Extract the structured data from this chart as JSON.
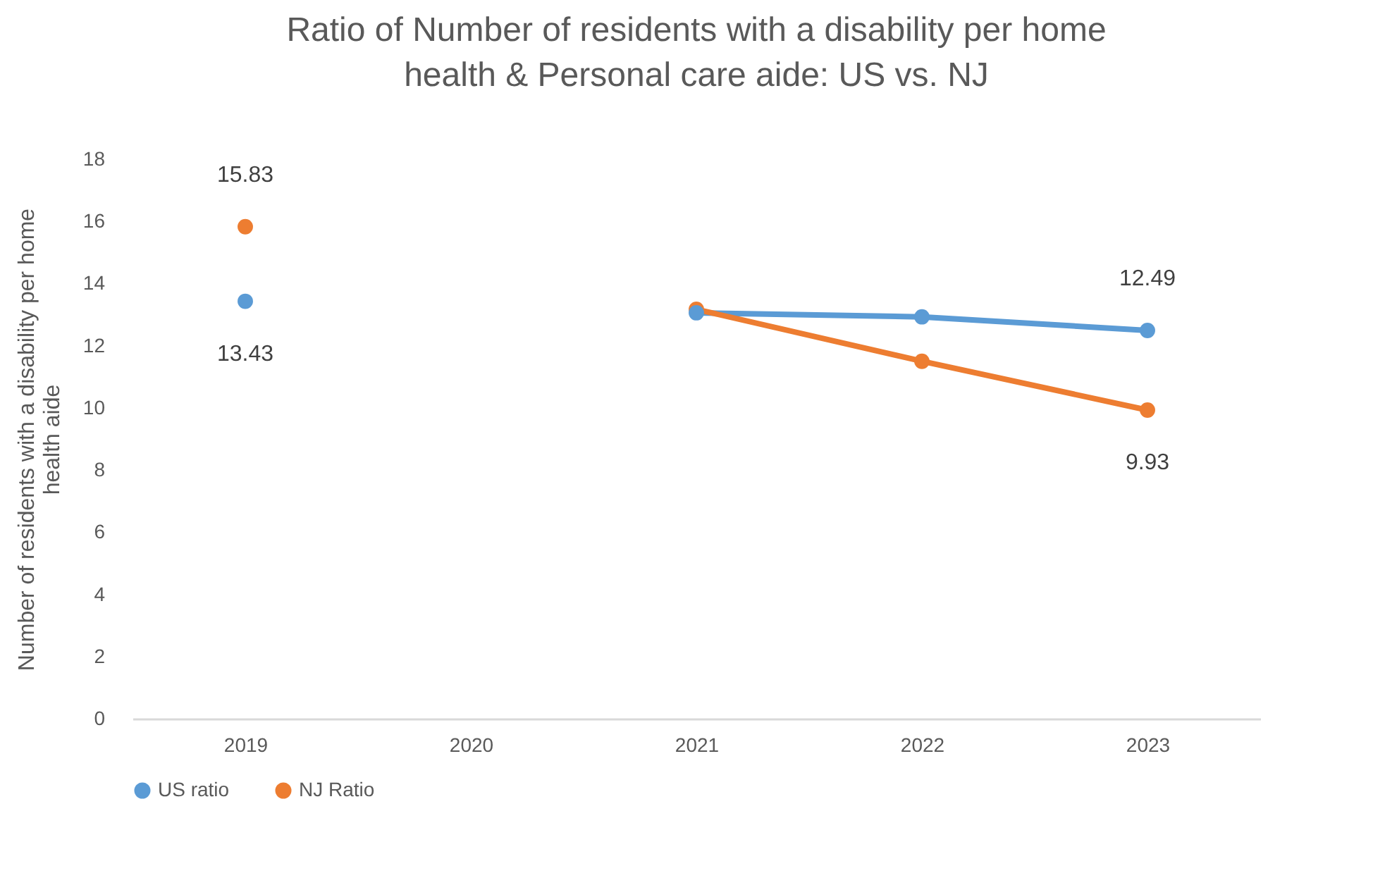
{
  "chart_data": {
    "type": "line",
    "title": "Ratio of Number of residents with a disability per home health & Personal care aide: US vs. NJ",
    "ylabel": "Number of residents with a disability per home health aide",
    "categories": [
      "2019",
      "2020",
      "2021",
      "2022",
      "2023"
    ],
    "series": [
      {
        "name": "US ratio",
        "color": "#5b9bd5",
        "values": [
          13.43,
          null,
          13.06,
          12.93,
          12.49
        ],
        "value_labels": [
          "13.43",
          null,
          null,
          null,
          "12.49"
        ]
      },
      {
        "name": "NJ Ratio",
        "color": "#ed7d31",
        "values": [
          15.83,
          null,
          13.17,
          11.5,
          9.93
        ],
        "value_labels": [
          "15.83",
          null,
          null,
          null,
          "9.93"
        ]
      }
    ],
    "ylim": [
      0,
      18
    ],
    "yticks": [
      0,
      2,
      4,
      6,
      8,
      10,
      12,
      14,
      16,
      18
    ],
    "grid": false,
    "legend": "bottom",
    "marker": "circle",
    "line_style": "solid"
  }
}
